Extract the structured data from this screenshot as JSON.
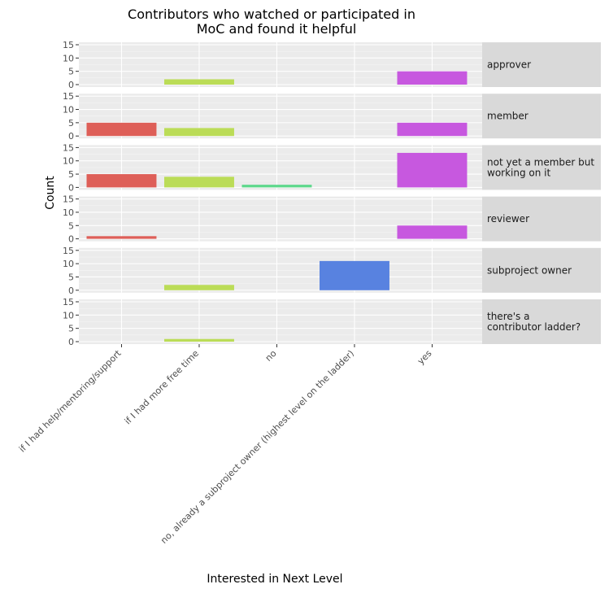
{
  "chart_data": {
    "type": "bar",
    "title_lines": [
      "Contributors who watched or participated in",
      "MoC and found it helpful"
    ],
    "xlabel": "Interested in Next Level",
    "ylabel": "Count",
    "ylim": [
      0,
      15
    ],
    "yticks": [
      0,
      5,
      10,
      15
    ],
    "grid": true,
    "facet_by": "row",
    "categories": [
      "if I had help/mentoring/support",
      "if I had more free time",
      "no",
      "no, already a subproject owner (highest level on the ladder)",
      "yes"
    ],
    "colors": [
      "#de5f58",
      "#bbdc57",
      "#5ed88c",
      "#5882e0",
      "#c758df"
    ],
    "facets": [
      {
        "label_lines": [
          "approver"
        ],
        "values": [
          0,
          2,
          0,
          0,
          5
        ]
      },
      {
        "label_lines": [
          "member"
        ],
        "values": [
          5,
          3,
          0,
          0,
          5
        ]
      },
      {
        "label_lines": [
          "not yet a member but",
          "working on it"
        ],
        "values": [
          5,
          4,
          1,
          0,
          13
        ]
      },
      {
        "label_lines": [
          "reviewer"
        ],
        "values": [
          1,
          0,
          0,
          0,
          5
        ]
      },
      {
        "label_lines": [
          "subproject owner"
        ],
        "values": [
          0,
          2,
          0,
          11,
          0
        ]
      },
      {
        "label_lines": [
          "there's a",
          "contributor ladder?"
        ],
        "values": [
          0,
          1,
          0,
          0,
          0
        ]
      }
    ]
  }
}
